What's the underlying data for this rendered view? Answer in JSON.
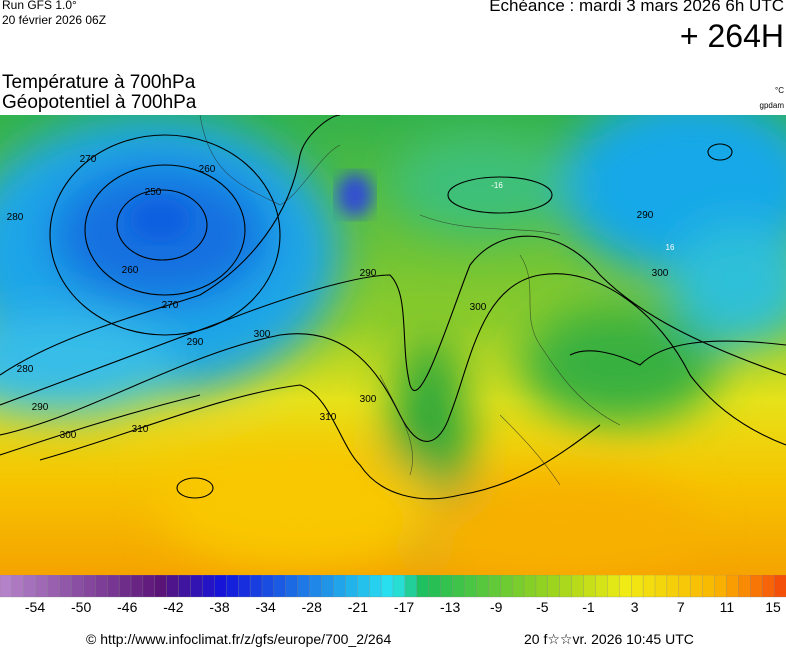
{
  "header": {
    "run": "Run GFS 1.0°",
    "run_date": "20 février 2026 06Z",
    "echeance": "Echéance : mardi 3 mars 2026 6h UTC",
    "lead": "+ 264H",
    "title_temp": "Température à 700hPa",
    "title_geo": "Géopotentiel à 700hPa",
    "unit_temp": "°C",
    "unit_geo": "gpdam"
  },
  "map": {
    "contour_labels": [
      270,
      260,
      250,
      280,
      260,
      270,
      280,
      290,
      300,
      310,
      290,
      300,
      310,
      300,
      290,
      300,
      300,
      290,
      -16,
      16
    ]
  },
  "colorbar": {
    "labels": [
      -54,
      -50,
      -46,
      -42,
      -38,
      -34,
      -28,
      -21,
      -17,
      -13,
      -9,
      -5,
      -1,
      3,
      7,
      11,
      15
    ]
  },
  "footer": {
    "url": "© http://www.infoclimat.fr/z/gfs/europe/700_2/264",
    "generated": "20 f☆☆vr. 2026 10:45 UTC"
  }
}
